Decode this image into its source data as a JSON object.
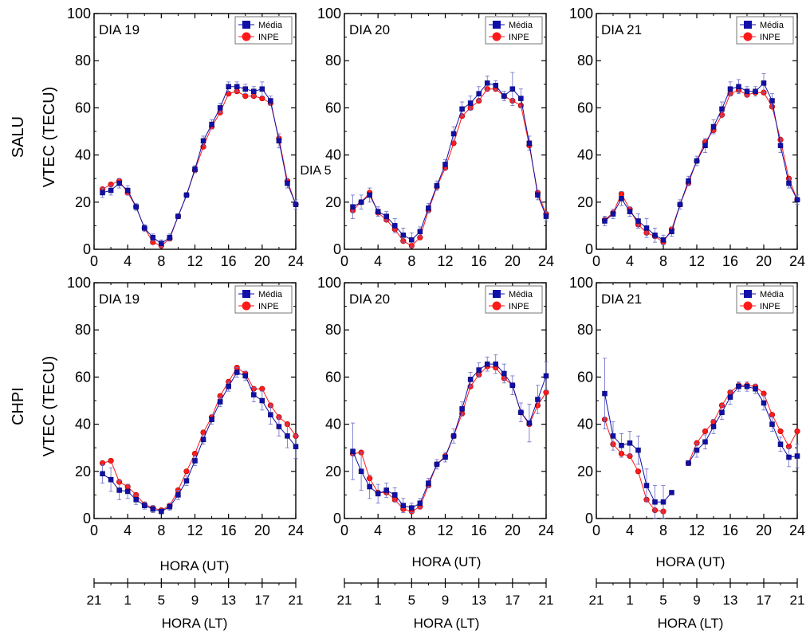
{
  "figure": {
    "row_labels": [
      "SALU",
      "CHPI"
    ],
    "ylabel": "VTEC (TECU)",
    "xlabel_ut": "HORA (UT)",
    "xlabel_lt": "HORA (LT)",
    "stray_label": "DIA 5",
    "legend": [
      "Média",
      "INPE"
    ],
    "colors": {
      "media": "#1010a8",
      "inpe": "#ff1a1a",
      "inpe_edge": "#b00000"
    }
  },
  "chart_data": [
    {
      "type": "line",
      "station": "SALU",
      "title": "DIA 19",
      "xlim": [
        0,
        24
      ],
      "ylim": [
        0,
        100
      ],
      "xticks": [
        "0",
        "4",
        "8",
        "12",
        "16",
        "20",
        "24"
      ],
      "yticks": [
        "0",
        "20",
        "40",
        "60",
        "80",
        "100"
      ],
      "series": [
        {
          "name": "Média",
          "x": [
            1,
            2,
            3,
            4,
            5,
            6,
            7,
            8,
            9,
            10,
            11,
            12,
            13,
            14,
            15,
            16,
            17,
            18,
            19,
            20,
            21,
            22,
            23,
            24
          ],
          "values": [
            24,
            25,
            28,
            25,
            18,
            9,
            5,
            2.5,
            5,
            14,
            23,
            34,
            46,
            53,
            60,
            69,
            69,
            68,
            67,
            68,
            63,
            46,
            28,
            19
          ],
          "errors": [
            2,
            2,
            2,
            2,
            1.5,
            1.5,
            1.5,
            1.5,
            1.5,
            1,
            1,
            1.5,
            2,
            2,
            2,
            2,
            2,
            2,
            2,
            3,
            2,
            3,
            2,
            2
          ]
        },
        {
          "name": "INPE",
          "x": [
            1,
            2,
            3,
            4,
            5,
            6,
            7,
            8,
            9,
            10,
            11,
            12,
            13,
            14,
            15,
            16,
            17,
            18,
            19,
            20,
            21,
            22,
            23,
            24
          ],
          "values": [
            25.5,
            27.5,
            29,
            24,
            18,
            9,
            3,
            1.5,
            4.5,
            14,
            23,
            33.5,
            43.5,
            52,
            58,
            66,
            67,
            65,
            65,
            64,
            62,
            47,
            29,
            19
          ]
        }
      ]
    },
    {
      "type": "line",
      "station": "SALU",
      "title": "DIA 20",
      "xlim": [
        0,
        24
      ],
      "ylim": [
        0,
        100
      ],
      "xticks": [
        "0",
        "4",
        "8",
        "12",
        "16",
        "20",
        "24"
      ],
      "yticks": [
        "0",
        "20",
        "40",
        "60",
        "80",
        "100"
      ],
      "series": [
        {
          "name": "Média",
          "x": [
            1,
            2,
            3,
            4,
            5,
            6,
            7,
            8,
            9,
            10,
            11,
            12,
            13,
            14,
            15,
            16,
            17,
            18,
            19,
            20,
            21,
            22,
            23,
            24
          ],
          "values": [
            18,
            20,
            23,
            16,
            14,
            10,
            6,
            4,
            7.5,
            17.5,
            27,
            36,
            49,
            59.5,
            62,
            66,
            70.5,
            69.5,
            65,
            68,
            64,
            45,
            23,
            14
          ],
          "errors": [
            5,
            3,
            3,
            2,
            2,
            3,
            3,
            3,
            2,
            2,
            2,
            2,
            3,
            3,
            3,
            3,
            3,
            2,
            2,
            7,
            4,
            3,
            2,
            2
          ]
        },
        {
          "name": "INPE",
          "x": [
            1,
            2,
            3,
            4,
            5,
            6,
            7,
            8,
            9,
            10,
            11,
            12,
            13,
            14,
            15,
            16,
            17,
            18,
            19,
            20,
            21,
            22,
            23,
            24
          ],
          "values": [
            16.5,
            20,
            24,
            15.5,
            12.5,
            8.5,
            3.5,
            1.5,
            5,
            16.5,
            26.5,
            34.5,
            45,
            56.5,
            60,
            63,
            68,
            68,
            65,
            63,
            61,
            44,
            24,
            15
          ]
        }
      ]
    },
    {
      "type": "line",
      "station": "SALU",
      "title": "DIA 21",
      "xlim": [
        0,
        24
      ],
      "ylim": [
        0,
        100
      ],
      "xticks": [
        "0",
        "4",
        "8",
        "12",
        "16",
        "20",
        "24"
      ],
      "yticks": [
        "0",
        "20",
        "40",
        "60",
        "80",
        "100"
      ],
      "series": [
        {
          "name": "Média",
          "x": [
            1,
            2,
            3,
            4,
            5,
            6,
            7,
            8,
            9,
            10,
            11,
            12,
            13,
            14,
            15,
            16,
            17,
            18,
            19,
            20,
            21,
            22,
            23,
            24
          ],
          "values": [
            12,
            15,
            21.5,
            16,
            12,
            9,
            6,
            4,
            7.5,
            19,
            29,
            37.5,
            44,
            52,
            59.5,
            68,
            69,
            67,
            67,
            70.5,
            63,
            44,
            28,
            21
          ],
          "errors": [
            2,
            2,
            3,
            2,
            3,
            4,
            3,
            2,
            2,
            2,
            2,
            2,
            3,
            3,
            3,
            3,
            3,
            2,
            2,
            4,
            3,
            3,
            2,
            2
          ]
        },
        {
          "name": "INPE",
          "x": [
            1,
            2,
            3,
            4,
            5,
            6,
            7,
            8,
            9,
            10,
            11,
            12,
            13,
            14,
            15,
            16,
            17,
            18,
            19,
            20,
            21,
            22,
            23,
            24
          ],
          "values": [
            12.5,
            15.5,
            23.5,
            17,
            10.5,
            7,
            5.5,
            3,
            8.5,
            19,
            28,
            37.5,
            45.5,
            50.5,
            57,
            66,
            67.5,
            65.5,
            66.5,
            66.5,
            60.5,
            46.5,
            30,
            21
          ]
        }
      ]
    },
    {
      "type": "line",
      "station": "CHPI",
      "title": "DIA 19",
      "xlim": [
        0,
        24
      ],
      "ylim": [
        0,
        100
      ],
      "xticks": [
        "0",
        "4",
        "8",
        "12",
        "16",
        "20",
        "24"
      ],
      "yticks": [
        "0",
        "20",
        "40",
        "60",
        "80",
        "100"
      ],
      "series": [
        {
          "name": "Média",
          "x": [
            1,
            2,
            3,
            4,
            5,
            6,
            7,
            8,
            9,
            10,
            11,
            12,
            13,
            14,
            15,
            16,
            17,
            18,
            19,
            20,
            21,
            22,
            23,
            24
          ],
          "values": [
            19,
            16.5,
            12,
            11.5,
            8,
            5.5,
            4,
            3,
            5,
            10,
            16,
            24.5,
            33.5,
            42,
            49.5,
            56,
            62,
            60.5,
            52.5,
            50,
            44,
            39,
            35,
            30.5
          ],
          "errors": [
            4,
            5,
            4,
            3,
            2,
            1.5,
            1.5,
            1,
            1.5,
            2,
            2,
            2,
            2,
            2,
            2,
            2,
            2,
            2,
            3,
            4,
            4,
            4,
            5,
            5
          ]
        },
        {
          "name": "INPE",
          "x": [
            1,
            2,
            3,
            4,
            5,
            6,
            7,
            8,
            9,
            10,
            11,
            12,
            13,
            14,
            15,
            16,
            17,
            18,
            19,
            20,
            21,
            22,
            23,
            24
          ],
          "values": [
            23.5,
            24.5,
            15.5,
            13.5,
            10,
            6,
            4.5,
            3.5,
            5.5,
            12,
            20,
            27.5,
            36.5,
            43,
            52,
            58,
            64,
            61.5,
            55,
            55,
            48,
            43,
            40,
            35
          ]
        }
      ]
    },
    {
      "type": "line",
      "station": "CHPI",
      "title": "DIA 20",
      "xlim": [
        0,
        24
      ],
      "ylim": [
        0,
        100
      ],
      "xticks": [
        "0",
        "4",
        "8",
        "12",
        "16",
        "20",
        "24"
      ],
      "yticks": [
        "0",
        "20",
        "40",
        "60",
        "80",
        "100"
      ],
      "series": [
        {
          "name": "Média",
          "x": [
            1,
            2,
            3,
            4,
            5,
            6,
            7,
            8,
            9,
            10,
            11,
            12,
            13,
            14,
            15,
            16,
            17,
            18,
            19,
            20,
            21,
            22,
            23,
            24
          ],
          "values": [
            28.5,
            20,
            13.5,
            10.5,
            12,
            10,
            5.5,
            4.5,
            6.5,
            15,
            23,
            26,
            35,
            46.5,
            59,
            63,
            65.5,
            65.5,
            61.5,
            56.5,
            45,
            40.5,
            50.5,
            60.5
          ],
          "errors": [
            12,
            8,
            5,
            4,
            3,
            3,
            3,
            2,
            2,
            2,
            2,
            2,
            3,
            3,
            3,
            3,
            3,
            4,
            4,
            4,
            4,
            8,
            6,
            6
          ]
        },
        {
          "name": "INPE",
          "x": [
            1,
            2,
            3,
            4,
            5,
            6,
            7,
            8,
            9,
            10,
            11,
            12,
            13,
            14,
            15,
            16,
            17,
            18,
            19,
            20,
            21,
            22,
            23,
            24
          ],
          "values": [
            27.5,
            28,
            17,
            11,
            11,
            8,
            4,
            3,
            5,
            14,
            23,
            26.5,
            35,
            44.5,
            56,
            61,
            64.5,
            64,
            59.5,
            56.5,
            45,
            40,
            48,
            53.5
          ]
        }
      ]
    },
    {
      "type": "line",
      "station": "CHPI",
      "title": "DIA 21",
      "xlim": [
        0,
        24
      ],
      "ylim": [
        0,
        100
      ],
      "xticks": [
        "0",
        "4",
        "8",
        "12",
        "16",
        "20",
        "24"
      ],
      "yticks": [
        "0",
        "20",
        "40",
        "60",
        "80",
        "100"
      ],
      "series": [
        {
          "name": "Média",
          "x": [
            1,
            2,
            3,
            4,
            5,
            6,
            7,
            8,
            9,
            11,
            12,
            13,
            14,
            15,
            16,
            17,
            18,
            19,
            20,
            21,
            22,
            23,
            24
          ],
          "values": [
            53,
            35,
            31,
            32,
            29,
            14,
            7,
            7,
            11,
            23.5,
            29,
            32.5,
            39,
            45,
            51.5,
            56,
            56,
            55,
            49,
            40,
            31.5,
            26,
            26.5
          ],
          "errors": [
            15,
            6,
            5,
            5,
            6,
            7,
            7,
            7,
            0,
            1,
            3,
            3,
            3,
            3,
            3,
            2,
            2,
            2,
            3,
            3,
            3,
            4,
            5
          ]
        },
        {
          "name": "INPE",
          "x": [
            1,
            2,
            3,
            4,
            5,
            6,
            7,
            8,
            11,
            12,
            13,
            14,
            15,
            16,
            17,
            18,
            19,
            20,
            21,
            22,
            23,
            24
          ],
          "values": [
            42,
            31.5,
            27.5,
            26.5,
            20,
            8,
            3.5,
            3,
            23.5,
            32,
            37,
            41,
            48,
            53.5,
            56.5,
            56.5,
            56,
            53,
            44,
            37,
            30.5,
            37
          ]
        }
      ]
    }
  ]
}
